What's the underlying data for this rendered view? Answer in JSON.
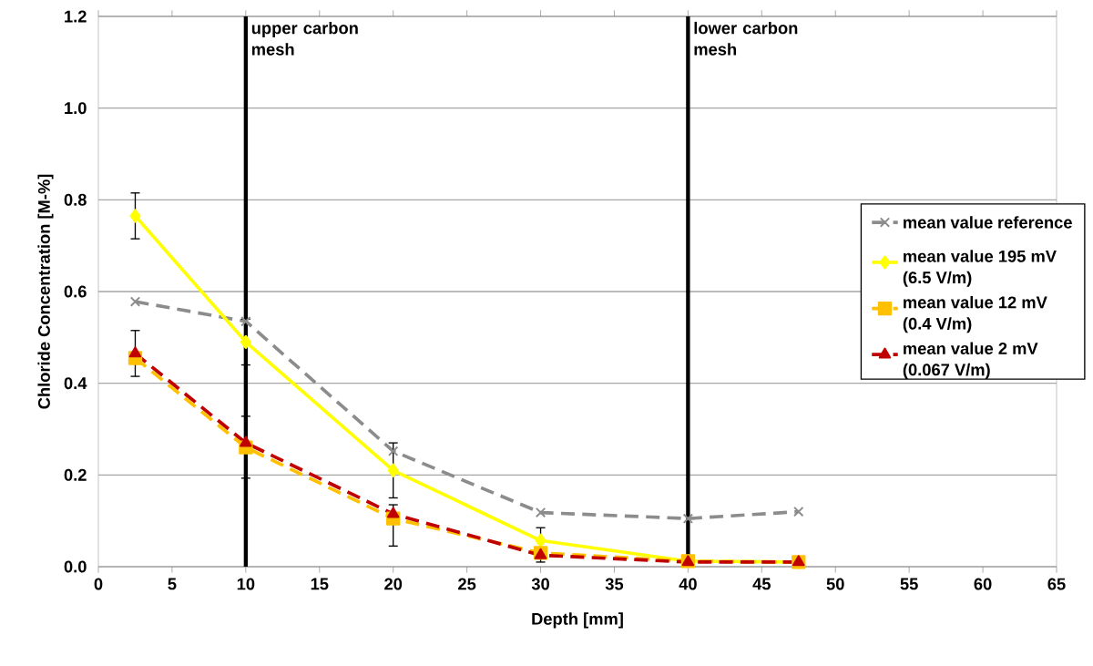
{
  "chart_data": {
    "type": "line",
    "xlabel": "Depth  [mm]",
    "ylabel": "Chloride Concentration [M-%]",
    "x": [
      2.5,
      10,
      20,
      30,
      40,
      47.5
    ],
    "xlim": [
      0,
      65
    ],
    "ylim": [
      0,
      1.2
    ],
    "xticks": [
      0,
      5,
      10,
      15,
      20,
      25,
      30,
      35,
      40,
      45,
      50,
      55,
      60,
      65
    ],
    "yticks": [
      {
        "value": 0,
        "label": "0.0"
      },
      {
        "value": 0.2,
        "label": "0.2"
      },
      {
        "value": 0.4,
        "label": "0.4"
      },
      {
        "value": 0.6,
        "label": "0.6"
      },
      {
        "value": 0.8,
        "label": "0.8"
      },
      {
        "value": 1.0,
        "label": "1.0"
      },
      {
        "value": 1.2,
        "label": "1.2"
      }
    ],
    "grid": "y",
    "legend": "right",
    "series": [
      {
        "name": "mean value reference",
        "color": "#8c8c8c",
        "marker": "cross",
        "line_style": "dashed",
        "values": [
          0.578,
          0.535,
          0.252,
          0.118,
          0.105,
          0.12
        ]
      },
      {
        "name": "mean value 195 mV (6.5 V/m)",
        "color": "#ffff00",
        "marker": "diamond",
        "line_style": "solid",
        "values": [
          0.765,
          0.49,
          0.21,
          0.057,
          0.012,
          0.01
        ],
        "errors": [
          0.05,
          0.05,
          0.06,
          null,
          null,
          null
        ]
      },
      {
        "name": "mean value 12 mV (0.4 V/m)",
        "color": "#ffc000",
        "marker": "square",
        "line_style": "dashed",
        "values": [
          0.455,
          0.26,
          0.105,
          0.03,
          0.012,
          0.01
        ],
        "errors": [
          null,
          null,
          null,
          null,
          null,
          null
        ]
      },
      {
        "name": "mean value 2 mV (0.067 V/m)",
        "color": "#c00000",
        "marker": "triangle",
        "line_style": "dashed",
        "values": [
          0.465,
          0.27,
          0.115,
          0.025,
          0.01,
          0.01
        ],
        "errors": [
          0.05,
          [
            0.193,
            0.328
          ],
          [
            0.045,
            0.135
          ],
          [
            0.01,
            0.085
          ],
          null,
          null
        ]
      }
    ],
    "ref_lines": [
      {
        "axis": "x",
        "value": 10,
        "label": "upper carbon mesh",
        "color": "#000000"
      },
      {
        "axis": "x",
        "value": 40,
        "label": "lower carbon mesh",
        "color": "#000000"
      }
    ]
  }
}
